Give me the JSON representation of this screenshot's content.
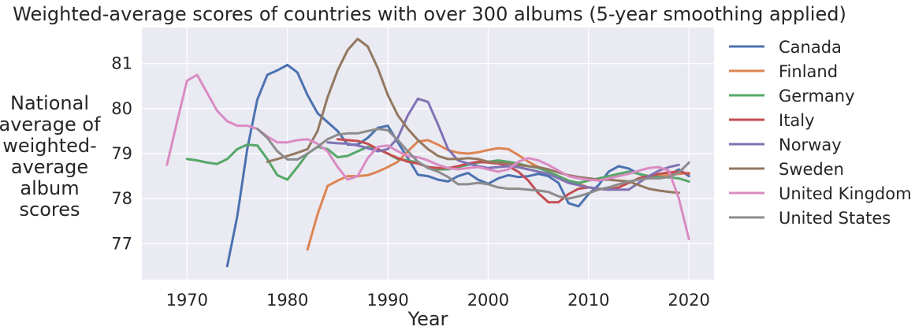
{
  "chart_data": {
    "type": "line",
    "title": "Weighted-average scores of countries with over 300 albums (5-year smoothing applied)",
    "xlabel": "Year",
    "ylabel": "National average of weighted-average album scores",
    "ylabel_lines": [
      "National",
      "average of",
      "weighted-",
      "average",
      "album",
      "scores"
    ],
    "xlim": [
      1965.5,
      2022.5
    ],
    "ylim": [
      76.2,
      81.8
    ],
    "xticks": [
      1970,
      1980,
      1990,
      2000,
      2010,
      2020
    ],
    "yticks": [
      77,
      78,
      79,
      80,
      81
    ],
    "grid": true,
    "legend_position": "outside-right",
    "series": [
      {
        "name": "Canada",
        "color": "#4c72b0",
        "x": [
          1974,
          1975,
          1976,
          1977,
          1978,
          1979,
          1980,
          1981,
          1982,
          1983,
          1984,
          1985,
          1986,
          1987,
          1988,
          1989,
          1990,
          1991,
          1992,
          1993,
          1994,
          1995,
          1996,
          1997,
          1998,
          1999,
          2000,
          2001,
          2002,
          2003,
          2004,
          2005,
          2006,
          2007,
          2008,
          2009,
          2010,
          2011,
          2012,
          2013,
          2014,
          2015,
          2016,
          2017,
          2018,
          2019,
          2020
        ],
        "y": [
          76.5,
          77.6,
          79.1,
          80.2,
          80.75,
          80.85,
          80.97,
          80.8,
          80.3,
          79.9,
          79.7,
          79.5,
          79.2,
          79.2,
          79.35,
          79.57,
          79.62,
          79.25,
          78.9,
          78.53,
          78.5,
          78.42,
          78.38,
          78.5,
          78.57,
          78.42,
          78.33,
          78.45,
          78.52,
          78.48,
          78.5,
          78.55,
          78.5,
          78.35,
          77.9,
          77.83,
          78.1,
          78.3,
          78.6,
          78.72,
          78.67,
          78.55,
          78.47,
          78.45,
          78.52,
          78.65,
          78.5
        ]
      },
      {
        "name": "Finland",
        "color": "#dd8452",
        "x": [
          1982,
          1983,
          1984,
          1985,
          1986,
          1987,
          1988,
          1989,
          1990,
          1991,
          1992,
          1993,
          1994,
          1995,
          1996,
          1997,
          1998,
          1999,
          2000,
          2001,
          2002,
          2003,
          2004,
          2005,
          2006,
          2007,
          2008,
          2009,
          2010,
          2011,
          2012,
          2013,
          2014,
          2015,
          2016,
          2017,
          2018,
          2019,
          2020
        ],
        "y": [
          76.87,
          77.65,
          78.28,
          78.4,
          78.5,
          78.5,
          78.52,
          78.6,
          78.7,
          78.82,
          79.05,
          79.27,
          79.3,
          79.2,
          79.08,
          79.02,
          79.0,
          79.03,
          79.08,
          79.12,
          79.1,
          78.97,
          78.82,
          78.7,
          78.6,
          78.5,
          78.4,
          78.33,
          78.25,
          78.22,
          78.2,
          78.25,
          78.35,
          78.45,
          78.5,
          78.5,
          78.52,
          78.55,
          78.57
        ]
      },
      {
        "name": "Germany",
        "color": "#55a868",
        "x": [
          1970,
          1971,
          1972,
          1973,
          1974,
          1975,
          1976,
          1977,
          1978,
          1979,
          1980,
          1981,
          1982,
          1983,
          1984,
          1985,
          1986,
          1987,
          1988,
          1989,
          1990,
          1991,
          1992,
          1993,
          1994,
          1995,
          1996,
          1997,
          1998,
          1999,
          2000,
          2001,
          2002,
          2003,
          2004,
          2005,
          2006,
          2007,
          2008,
          2009,
          2010,
          2011,
          2012,
          2013,
          2014,
          2015,
          2016,
          2017,
          2018,
          2019,
          2020
        ],
        "y": [
          78.88,
          78.85,
          78.8,
          78.77,
          78.88,
          79.1,
          79.2,
          79.18,
          78.88,
          78.52,
          78.42,
          78.7,
          79.0,
          79.15,
          79.1,
          78.92,
          78.95,
          79.05,
          79.15,
          79.1,
          79.0,
          78.88,
          78.85,
          78.8,
          78.7,
          78.65,
          78.65,
          78.7,
          78.75,
          78.8,
          78.82,
          78.85,
          78.82,
          78.78,
          78.72,
          78.68,
          78.6,
          78.5,
          78.4,
          78.35,
          78.4,
          78.45,
          78.5,
          78.55,
          78.6,
          78.55,
          78.5,
          78.48,
          78.47,
          78.45,
          78.38
        ]
      },
      {
        "name": "Italy",
        "color": "#c44e52",
        "x": [
          1985,
          1986,
          1987,
          1988,
          1989,
          1990,
          1991,
          1992,
          1993,
          1994,
          1995,
          1996,
          1997,
          1998,
          1999,
          2000,
          2001,
          2002,
          2003,
          2004,
          2005,
          2006,
          2007,
          2008,
          2009,
          2010,
          2011,
          2012,
          2013,
          2014,
          2015,
          2016,
          2017,
          2018,
          2019,
          2020
        ],
        "y": [
          79.32,
          79.3,
          79.28,
          79.22,
          79.1,
          79.0,
          78.9,
          78.82,
          78.78,
          78.7,
          78.68,
          78.68,
          78.72,
          78.78,
          78.82,
          78.8,
          78.78,
          78.72,
          78.6,
          78.4,
          78.12,
          77.92,
          77.92,
          78.1,
          78.22,
          78.25,
          78.22,
          78.2,
          78.25,
          78.35,
          78.45,
          78.5,
          78.55,
          78.58,
          78.6,
          78.55
        ]
      },
      {
        "name": "Norway",
        "color": "#8172b3",
        "x": [
          1984,
          1985,
          1986,
          1987,
          1988,
          1989,
          1990,
          1991,
          1992,
          1993,
          1994,
          1995,
          1996,
          1997,
          1998,
          1999,
          2000,
          2001,
          2002,
          2003,
          2004,
          2005,
          2006,
          2007,
          2008,
          2009,
          2010,
          2011,
          2012,
          2013,
          2014,
          2015,
          2016,
          2017,
          2018,
          2019
        ],
        "y": [
          79.25,
          79.23,
          79.22,
          79.18,
          79.12,
          79.05,
          79.1,
          79.35,
          79.85,
          80.22,
          80.15,
          79.65,
          79.1,
          78.85,
          78.78,
          78.72,
          78.68,
          78.7,
          78.72,
          78.7,
          78.65,
          78.6,
          78.55,
          78.45,
          78.35,
          78.3,
          78.25,
          78.22,
          78.2,
          78.2,
          78.2,
          78.35,
          78.5,
          78.62,
          78.7,
          78.75
        ]
      },
      {
        "name": "Sweden",
        "color": "#937860",
        "x": [
          1978,
          1979,
          1980,
          1981,
          1982,
          1983,
          1984,
          1985,
          1986,
          1987,
          1988,
          1989,
          1990,
          1991,
          1992,
          1993,
          1994,
          1995,
          1996,
          1997,
          1998,
          1999,
          2000,
          2001,
          2002,
          2003,
          2004,
          2005,
          2006,
          2007,
          2008,
          2009,
          2010,
          2011,
          2012,
          2013,
          2014,
          2015,
          2016,
          2017,
          2018,
          2019
        ],
        "y": [
          78.82,
          78.88,
          78.95,
          79.02,
          79.1,
          79.5,
          80.25,
          80.85,
          81.3,
          81.55,
          81.38,
          80.9,
          80.3,
          79.85,
          79.55,
          79.3,
          79.1,
          78.95,
          78.88,
          78.88,
          78.9,
          78.88,
          78.82,
          78.8,
          78.78,
          78.75,
          78.72,
          78.7,
          78.65,
          78.58,
          78.52,
          78.48,
          78.45,
          78.42,
          78.42,
          78.4,
          78.38,
          78.3,
          78.22,
          78.18,
          78.15,
          78.13
        ]
      },
      {
        "name": "United Kingdom",
        "color": "#da8bc3",
        "x": [
          1968,
          1969,
          1970,
          1971,
          1972,
          1973,
          1974,
          1975,
          1976,
          1977,
          1978,
          1979,
          1980,
          1981,
          1982,
          1983,
          1984,
          1985,
          1986,
          1987,
          1988,
          1989,
          1990,
          1991,
          1992,
          1993,
          1994,
          1995,
          1996,
          1997,
          1998,
          1999,
          2000,
          2001,
          2002,
          2003,
          2004,
          2005,
          2006,
          2007,
          2008,
          2009,
          2010,
          2011,
          2012,
          2013,
          2014,
          2015,
          2016,
          2017,
          2018,
          2019,
          2020
        ],
        "y": [
          78.75,
          79.7,
          80.62,
          80.75,
          80.35,
          79.95,
          79.72,
          79.62,
          79.62,
          79.55,
          79.38,
          79.25,
          79.25,
          79.3,
          79.32,
          79.22,
          79.05,
          78.7,
          78.42,
          78.5,
          78.9,
          79.15,
          79.18,
          79.05,
          78.95,
          78.92,
          78.85,
          78.75,
          78.68,
          78.65,
          78.68,
          78.7,
          78.65,
          78.6,
          78.65,
          78.82,
          78.9,
          78.85,
          78.75,
          78.62,
          78.5,
          78.45,
          78.42,
          78.4,
          78.45,
          78.5,
          78.55,
          78.62,
          78.68,
          78.7,
          78.62,
          78.0,
          77.1
        ]
      },
      {
        "name": "United States",
        "color": "#8c8c8c",
        "x": [
          1977,
          1978,
          1979,
          1980,
          1981,
          1982,
          1983,
          1984,
          1985,
          1986,
          1987,
          1988,
          1989,
          1990,
          1991,
          1992,
          1993,
          1994,
          1995,
          1996,
          1997,
          1998,
          1999,
          2000,
          2001,
          2002,
          2003,
          2004,
          2005,
          2006,
          2007,
          2008,
          2009,
          2010,
          2011,
          2012,
          2013,
          2014,
          2015,
          2016,
          2017,
          2018,
          2019,
          2020
        ],
        "y": [
          79.55,
          79.35,
          79.05,
          78.87,
          78.87,
          79.0,
          79.15,
          79.32,
          79.42,
          79.45,
          79.45,
          79.5,
          79.55,
          79.52,
          79.3,
          79.05,
          78.82,
          78.68,
          78.6,
          78.48,
          78.32,
          78.32,
          78.35,
          78.32,
          78.25,
          78.22,
          78.22,
          78.2,
          78.18,
          78.15,
          78.05,
          78.0,
          78.05,
          78.12,
          78.2,
          78.25,
          78.32,
          78.38,
          78.42,
          78.45,
          78.45,
          78.48,
          78.58,
          78.8
        ]
      }
    ]
  }
}
